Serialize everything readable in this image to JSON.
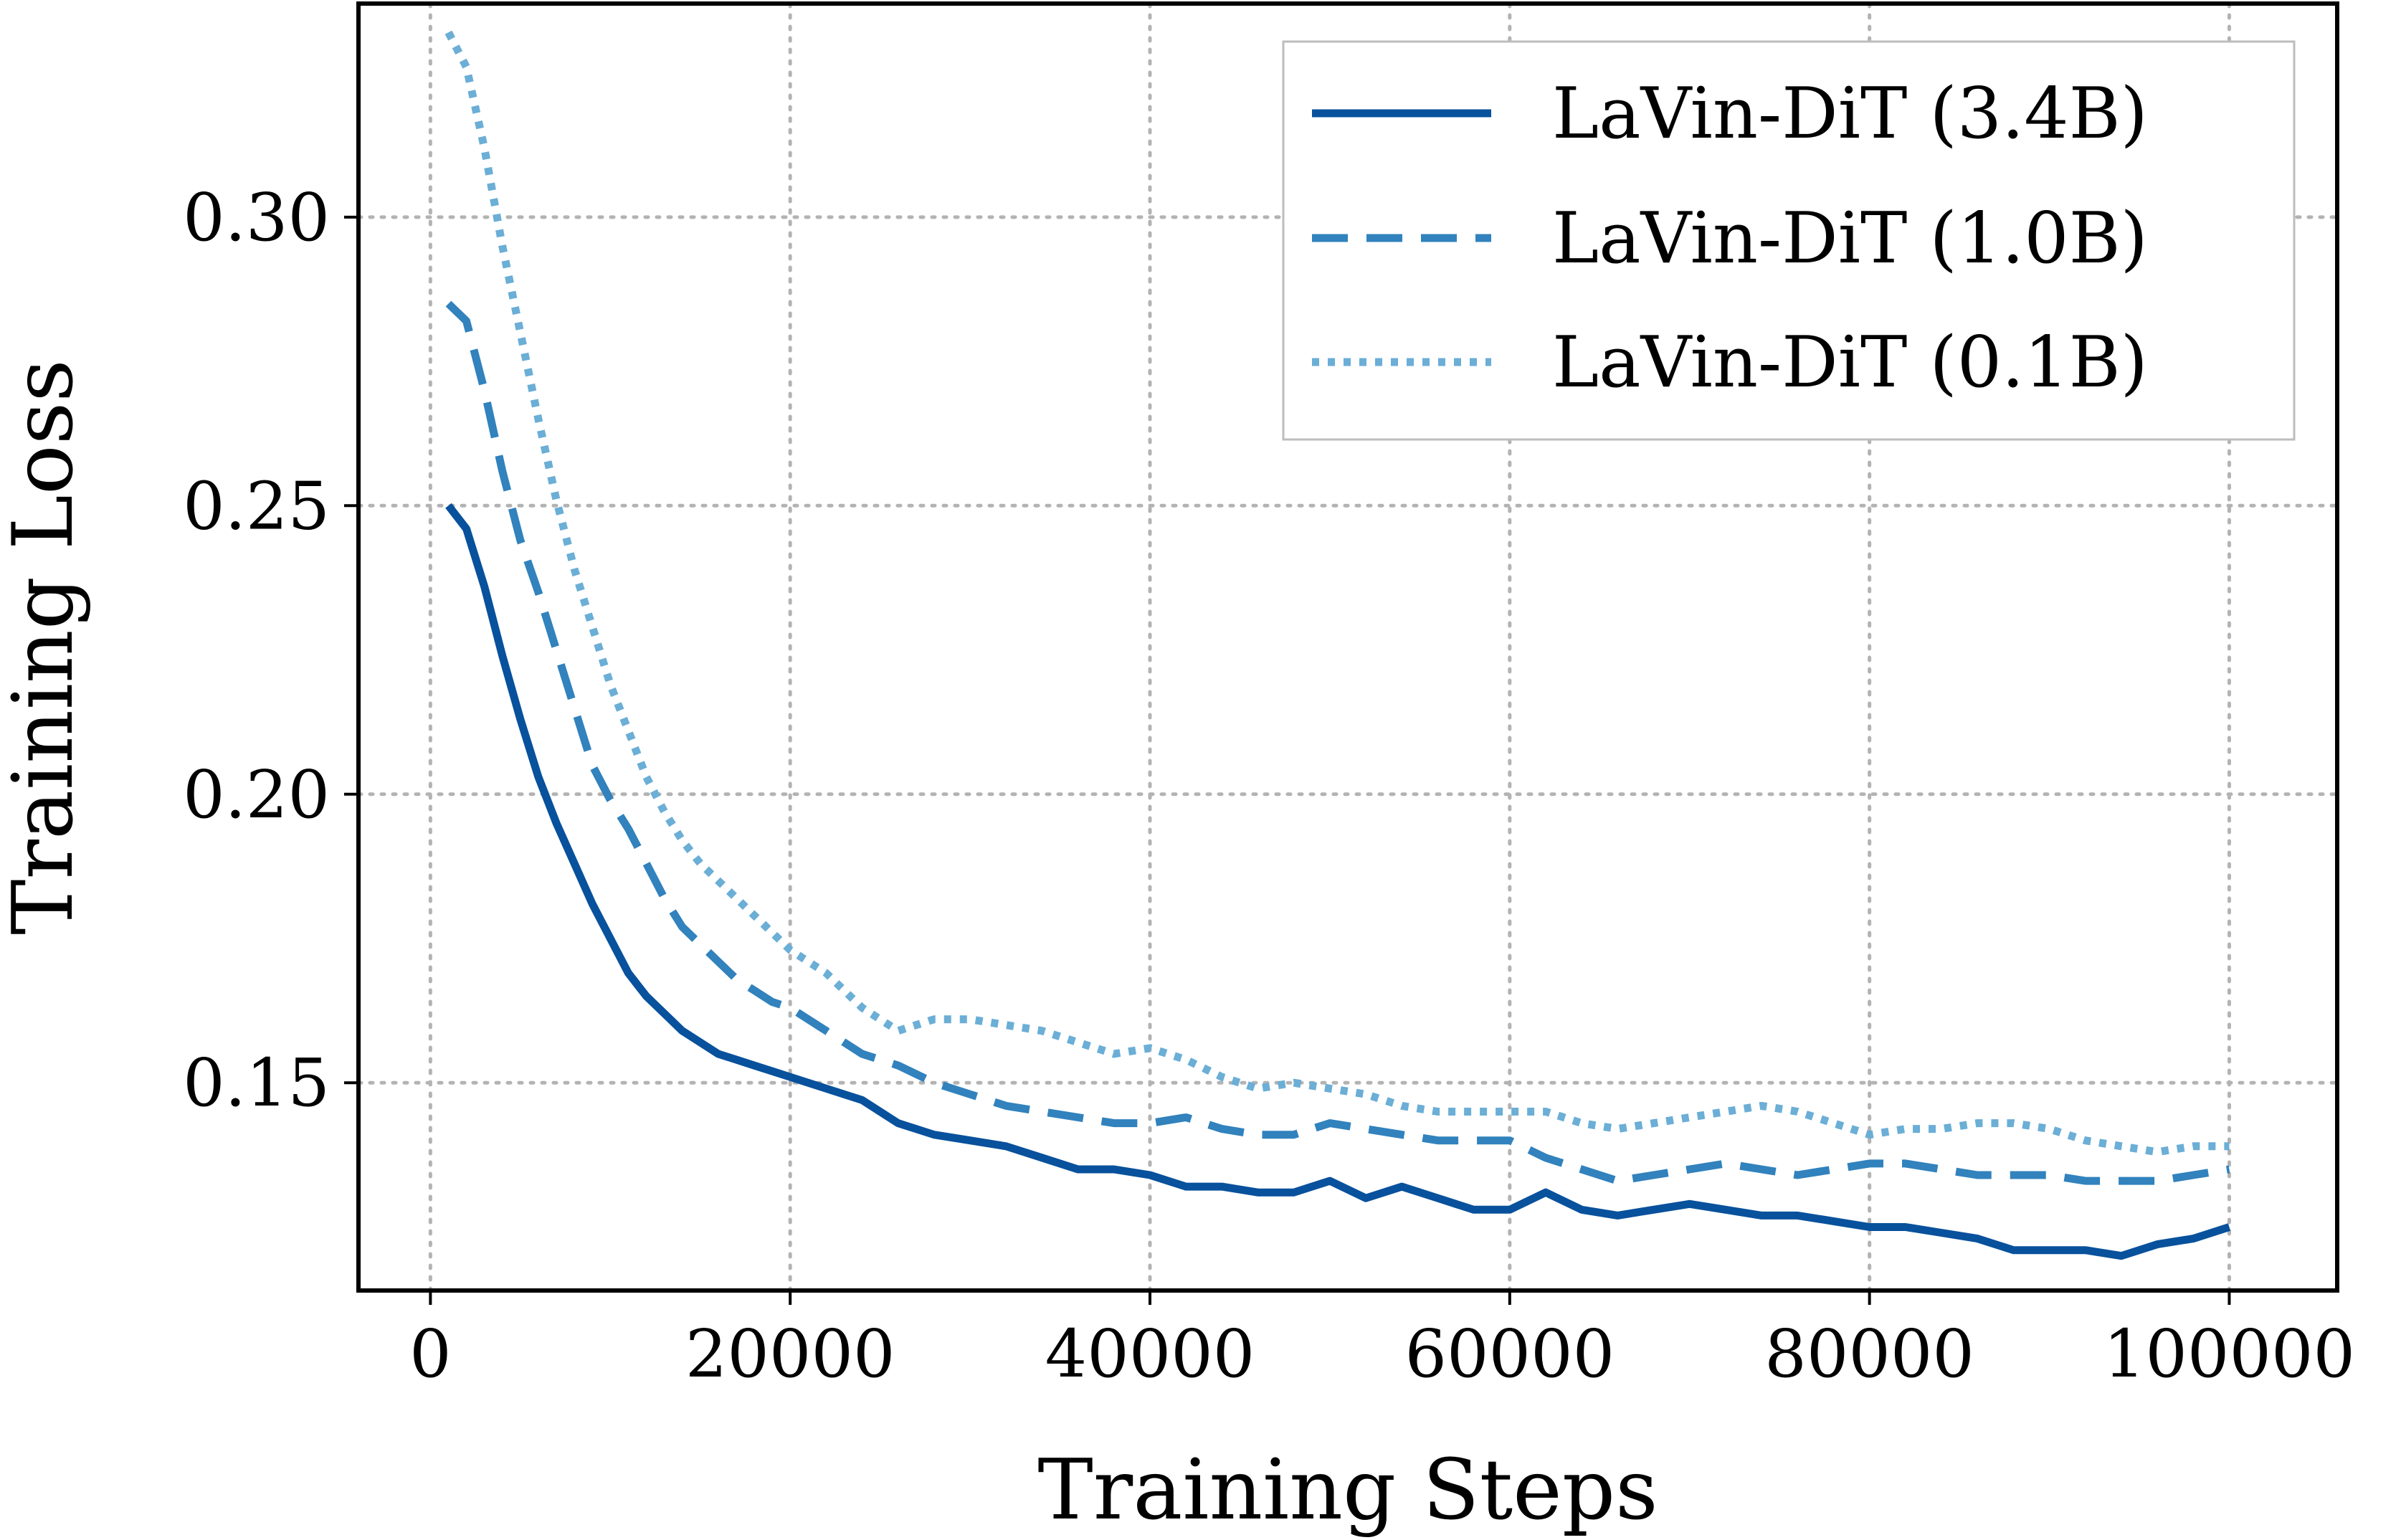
{
  "chart_data": {
    "type": "line",
    "xlabel": "Training Steps",
    "ylabel": "Training Loss",
    "xlim": [
      -4000,
      106000
    ],
    "ylim": [
      0.114,
      0.337
    ],
    "xticks": [
      0,
      20000,
      40000,
      60000,
      80000,
      100000
    ],
    "xtick_labels": [
      "0",
      "20000",
      "40000",
      "60000",
      "80000",
      "100000"
    ],
    "yticks": [
      0.15,
      0.2,
      0.25,
      0.3
    ],
    "ytick_labels": [
      "0.15",
      "0.20",
      "0.25",
      "0.30"
    ],
    "grid": true,
    "legend_position": "top-right",
    "series": [
      {
        "name": "LaVin-DiT (3.4B)",
        "color": "#08519c",
        "style": "solid",
        "x": [
          1000,
          2000,
          3000,
          4000,
          5000,
          6000,
          7000,
          8000,
          9000,
          10000,
          11000,
          12000,
          13000,
          14000,
          15000,
          16000,
          17000,
          18000,
          19000,
          20000,
          22000,
          24000,
          26000,
          28000,
          30000,
          32000,
          34000,
          36000,
          38000,
          40000,
          42000,
          44000,
          46000,
          48000,
          50000,
          52000,
          54000,
          56000,
          58000,
          60000,
          62000,
          64000,
          66000,
          68000,
          70000,
          72000,
          74000,
          76000,
          78000,
          80000,
          82000,
          84000,
          86000,
          88000,
          90000,
          92000,
          94000,
          96000,
          98000,
          100000
        ],
        "values": [
          0.25,
          0.246,
          0.236,
          0.224,
          0.213,
          0.203,
          0.195,
          0.188,
          0.181,
          0.175,
          0.169,
          0.165,
          0.162,
          0.159,
          0.157,
          0.155,
          0.154,
          0.153,
          0.152,
          0.151,
          0.149,
          0.147,
          0.143,
          0.141,
          0.14,
          0.139,
          0.137,
          0.135,
          0.135,
          0.134,
          0.132,
          0.132,
          0.131,
          0.131,
          0.133,
          0.13,
          0.132,
          0.13,
          0.128,
          0.128,
          0.131,
          0.128,
          0.127,
          0.128,
          0.129,
          0.128,
          0.127,
          0.127,
          0.126,
          0.125,
          0.125,
          0.124,
          0.123,
          0.121,
          0.121,
          0.121,
          0.12,
          0.122,
          0.123,
          0.125
        ]
      },
      {
        "name": "LaVin-DiT (1.0B)",
        "color": "#3182bd",
        "style": "dashed",
        "x": [
          1000,
          2000,
          3000,
          4000,
          5000,
          6000,
          7000,
          8000,
          9000,
          10000,
          11000,
          12000,
          13000,
          14000,
          15000,
          16000,
          17000,
          18000,
          19000,
          20000,
          22000,
          24000,
          26000,
          28000,
          30000,
          32000,
          34000,
          36000,
          38000,
          40000,
          42000,
          44000,
          46000,
          48000,
          50000,
          52000,
          54000,
          56000,
          58000,
          60000,
          62000,
          64000,
          66000,
          68000,
          70000,
          72000,
          74000,
          76000,
          78000,
          80000,
          82000,
          84000,
          86000,
          88000,
          90000,
          92000,
          94000,
          96000,
          98000,
          100000
        ],
        "values": [
          0.285,
          0.282,
          0.27,
          0.256,
          0.244,
          0.235,
          0.225,
          0.215,
          0.205,
          0.199,
          0.194,
          0.188,
          0.182,
          0.177,
          0.174,
          0.171,
          0.168,
          0.166,
          0.164,
          0.163,
          0.159,
          0.155,
          0.153,
          0.15,
          0.148,
          0.146,
          0.145,
          0.144,
          0.143,
          0.143,
          0.144,
          0.142,
          0.141,
          0.141,
          0.143,
          0.142,
          0.141,
          0.14,
          0.14,
          0.14,
          0.137,
          0.135,
          0.133,
          0.134,
          0.135,
          0.136,
          0.135,
          0.134,
          0.135,
          0.136,
          0.136,
          0.135,
          0.134,
          0.134,
          0.134,
          0.133,
          0.133,
          0.133,
          0.134,
          0.135
        ]
      },
      {
        "name": "LaVin-DiT (0.1B)",
        "color": "#6baed6",
        "style": "dotted",
        "x": [
          1000,
          2000,
          3000,
          4000,
          5000,
          6000,
          7000,
          8000,
          9000,
          10000,
          11000,
          12000,
          13000,
          14000,
          15000,
          16000,
          17000,
          18000,
          19000,
          20000,
          22000,
          24000,
          26000,
          28000,
          30000,
          32000,
          34000,
          36000,
          38000,
          40000,
          42000,
          44000,
          46000,
          48000,
          50000,
          52000,
          54000,
          56000,
          58000,
          60000,
          62000,
          64000,
          66000,
          68000,
          70000,
          72000,
          74000,
          76000,
          78000,
          80000,
          82000,
          84000,
          86000,
          88000,
          90000,
          92000,
          94000,
          96000,
          98000,
          100000
        ],
        "values": [
          0.332,
          0.326,
          0.312,
          0.295,
          0.28,
          0.265,
          0.251,
          0.239,
          0.229,
          0.219,
          0.211,
          0.203,
          0.197,
          0.192,
          0.188,
          0.185,
          0.182,
          0.179,
          0.176,
          0.173,
          0.169,
          0.163,
          0.159,
          0.161,
          0.161,
          0.16,
          0.159,
          0.157,
          0.155,
          0.156,
          0.154,
          0.151,
          0.149,
          0.15,
          0.149,
          0.148,
          0.146,
          0.145,
          0.145,
          0.145,
          0.145,
          0.143,
          0.142,
          0.143,
          0.144,
          0.145,
          0.146,
          0.145,
          0.143,
          0.141,
          0.142,
          0.142,
          0.143,
          0.143,
          0.142,
          0.14,
          0.139,
          0.138,
          0.139,
          0.139
        ]
      }
    ]
  }
}
